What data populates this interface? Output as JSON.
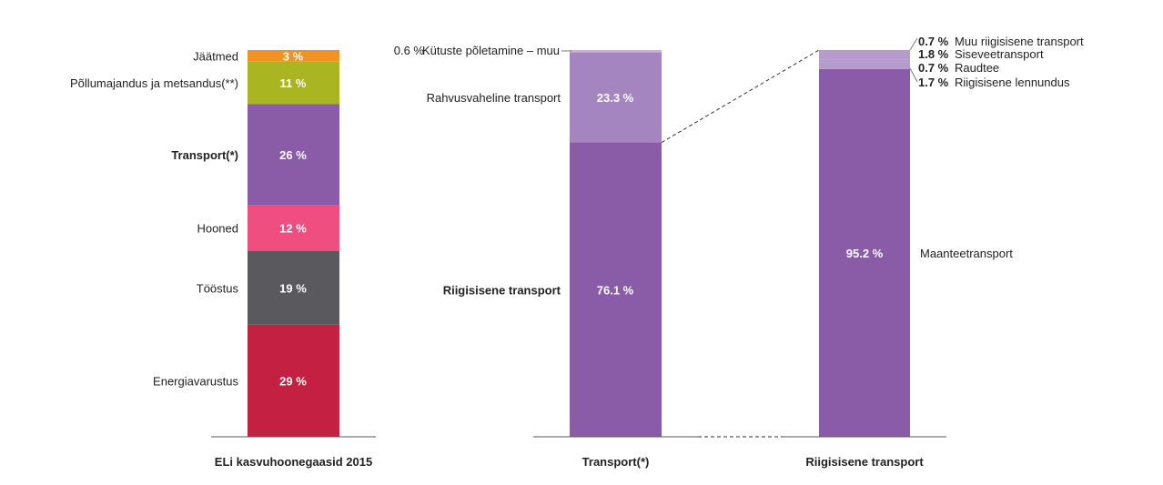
{
  "chart_data": [
    {
      "type": "bar",
      "stacked": true,
      "title": "ELi kasvuhoonegaasid 2015",
      "xlabel": "ELi kasvuhoonegaasid 2015",
      "categories": [
        "Energiavarustus",
        "Tööstus",
        "Hooned",
        "Transport(*)",
        "Põllumajandus ja metsandus(**)",
        "Jäätmed"
      ],
      "values": [
        29,
        19,
        12,
        26,
        11,
        3
      ],
      "labels": [
        "29 %",
        "19 %",
        "12 %",
        "26 %",
        "11 %",
        "3 %"
      ],
      "colors": [
        "#c42042",
        "#5a595d",
        "#ee4f80",
        "#8a5ca8",
        "#a9b521",
        "#ef9322"
      ]
    },
    {
      "type": "bar",
      "stacked": true,
      "xlabel": "Transport(*)",
      "categories": [
        "Riigisisene transport",
        "Rahvusvaheline transport",
        "Kütuste põletamine – muu"
      ],
      "values": [
        76.1,
        23.3,
        0.6
      ],
      "labels": [
        "76.1 %",
        "23.3 %",
        "0.6 %"
      ],
      "colors": [
        "#8a5ca8",
        "#a585bf",
        "#c9b5dc"
      ]
    },
    {
      "type": "bar",
      "stacked": true,
      "xlabel": "Riigisisene transport",
      "categories": [
        "Maanteetransport",
        "Riigisisene lennundus",
        "Raudtee",
        "Siseveetransport",
        "Muu riigisisene transport"
      ],
      "values": [
        95.2,
        1.7,
        0.7,
        1.8,
        0.7
      ],
      "labels": [
        "95.2 %",
        "1.7 %",
        "0.7 %",
        "1.8 %",
        "0.7 %"
      ],
      "colors": [
        "#8a5ca8",
        "#b49bcc",
        "#b49bcc",
        "#b49bcc",
        "#b49bcc"
      ]
    }
  ]
}
